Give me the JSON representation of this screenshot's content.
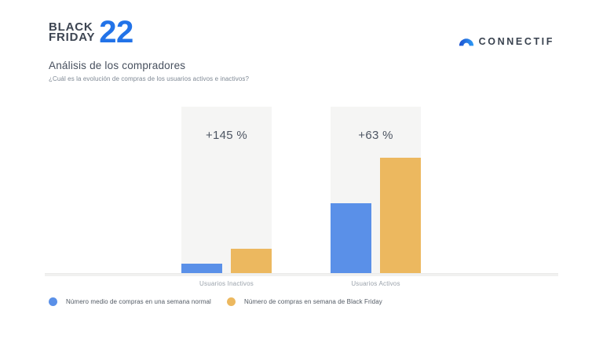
{
  "header": {
    "logo_line1": "BLACK",
    "logo_line2": "FRIDAY",
    "logo_year": "22",
    "brand_name": "CONNECTIF"
  },
  "title": "Análisis de los compradores",
  "subtitle": "¿Cuál es la evolución de compras de los usuarios activos e inactivos?",
  "colors": {
    "brand_blue": "#2273e8",
    "dark_slate_text": "#3d4552",
    "title_text": "#47505e",
    "muted_text": "#7e8894",
    "panel_background": "#f5f5f4",
    "bar_blue": "#5a90e8",
    "bar_orange": "#ecb85f",
    "arc_gradient_start": "#1d50cf",
    "arc_gradient_end": "#2e9cf5"
  },
  "chart_data": {
    "type": "bar",
    "title": "Análisis de los compradores",
    "categories": [
      "Usuarios Inactivos",
      "Usuarios Activos"
    ],
    "series": [
      {
        "name": "Número medio de compras en una semana normal",
        "color": "#5a90e8",
        "heights_pct": [
          5.5,
          42
        ]
      },
      {
        "name": "Número de compras en semana de Black Friday",
        "color": "#ecb85f",
        "heights_pct": [
          14.8,
          69.5
        ]
      }
    ],
    "growth_labels": [
      "+145 %",
      "+63 %"
    ],
    "growth_values_pct": [
      145,
      63
    ],
    "xlabel": "",
    "ylabel": "",
    "grid": false,
    "legend_position": "bottom-left"
  },
  "legend": {
    "items": [
      {
        "label": "Número medio de compras en una semana normal",
        "color": "#5a90e8"
      },
      {
        "label": "Número de compras en semana de Black Friday",
        "color": "#ecb85f"
      }
    ]
  }
}
